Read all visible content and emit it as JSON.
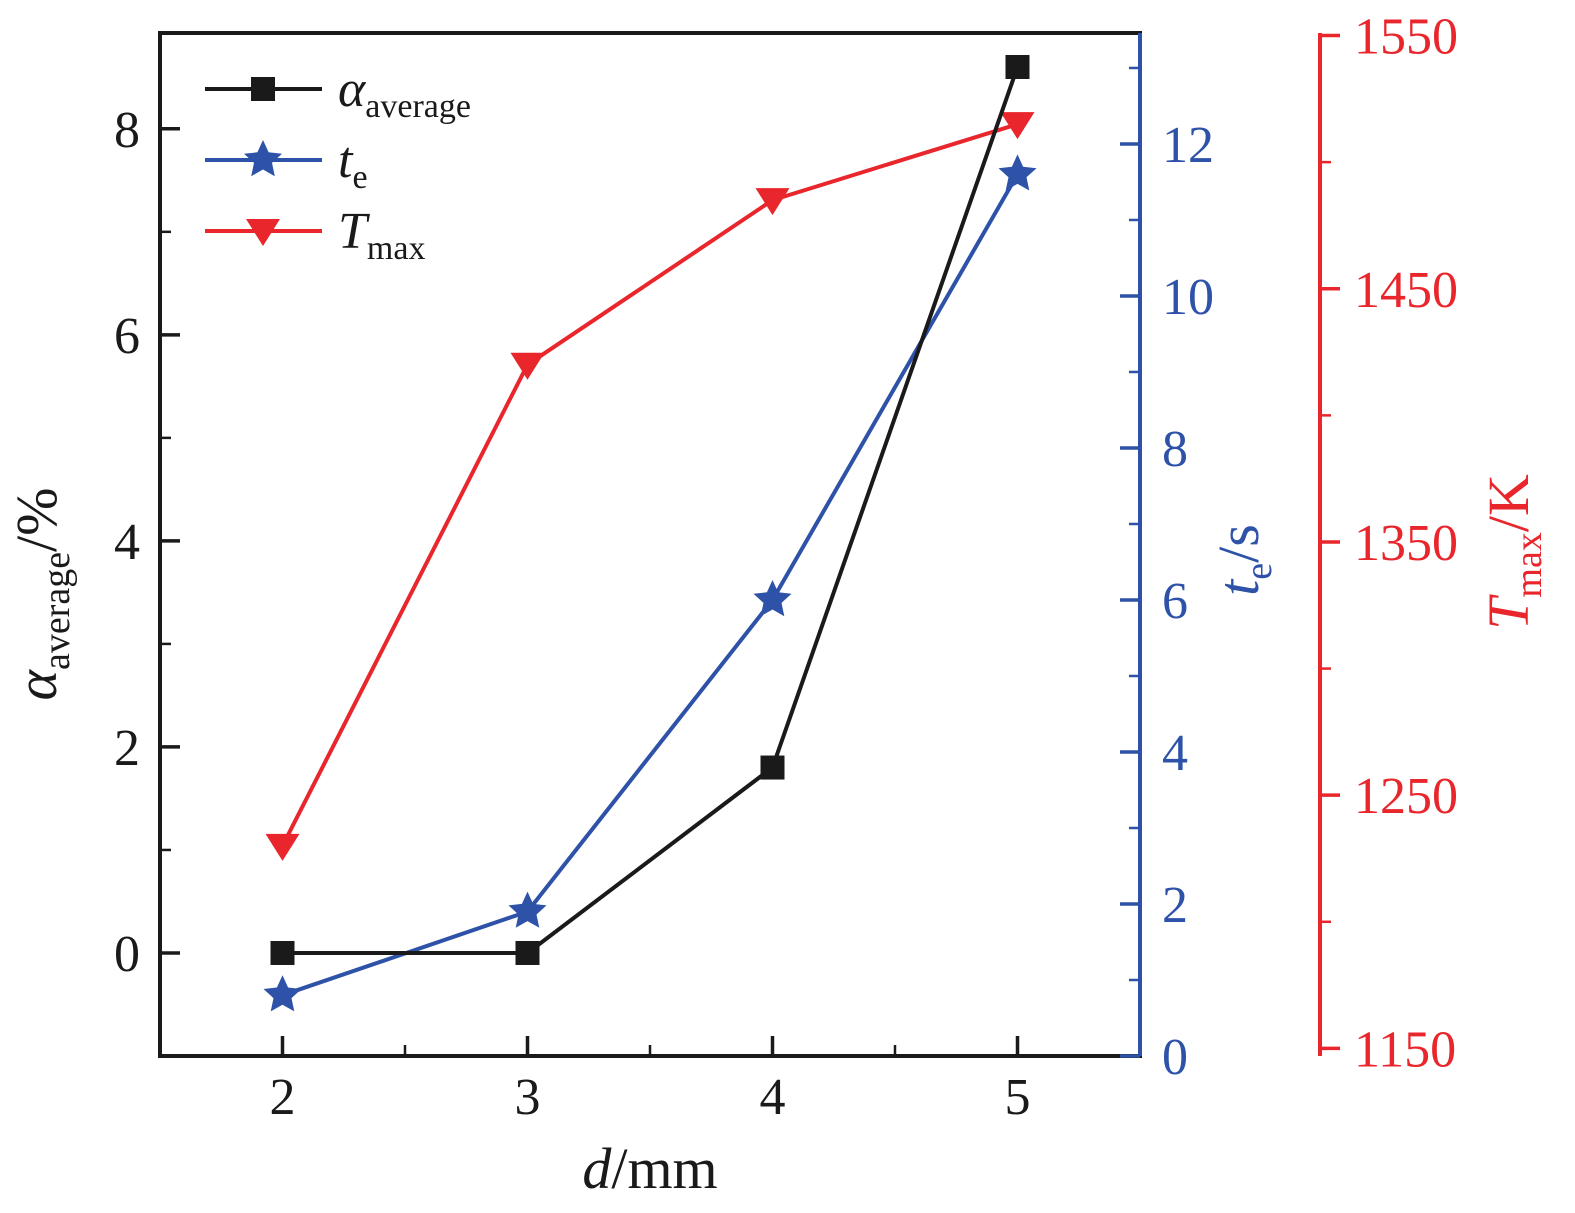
{
  "background": "#ffffff",
  "chart_data": {
    "type": "line",
    "x": [
      2,
      3,
      4,
      5
    ],
    "x_ticks": [
      2,
      3,
      4,
      5
    ],
    "x_minor_ticks": [
      2.5,
      3.5,
      4.5
    ],
    "xlim": [
      1.5,
      5.5
    ],
    "xlabel": {
      "main": "d",
      "suffix": "/mm"
    },
    "series": [
      {
        "name": "alpha-average",
        "axis": "left",
        "marker": "square",
        "color": "#1a1a1a",
        "values": [
          0,
          0,
          1.8,
          8.6
        ],
        "label": {
          "main": "α",
          "sub": "average"
        }
      },
      {
        "name": "te",
        "axis": "right_te",
        "marker": "star",
        "color": "#2d52a8",
        "values": [
          0.8,
          1.9,
          6.0,
          11.6
        ],
        "label": {
          "main": "t",
          "sub": "e"
        }
      },
      {
        "name": "tmax",
        "axis": "right_tmax",
        "marker": "triangle-down",
        "color": "#e8262c",
        "values": [
          1230,
          1420,
          1485,
          1515
        ],
        "label": {
          "main": "T",
          "sub": "max"
        }
      }
    ],
    "axes": {
      "left": {
        "color": "#1a1a1a",
        "lim": [
          -1.0,
          8.93
        ],
        "ticks": [
          0,
          2,
          4,
          6,
          8
        ],
        "minor_ticks": [
          1,
          3,
          5,
          7
        ],
        "label": {
          "main": "α",
          "sub": "average",
          "suffix": "/%"
        }
      },
      "right_te": {
        "color": "#2d52a8",
        "lim": [
          0,
          13.46
        ],
        "ticks": [
          0,
          2,
          4,
          6,
          8,
          10,
          12
        ],
        "minor_ticks": [
          1,
          3,
          5,
          7,
          9,
          11,
          13
        ],
        "label": {
          "main": "t",
          "sub": "e",
          "suffix": "/s"
        }
      },
      "right_tmax": {
        "color": "#e8262c",
        "lim": [
          1147,
          1551
        ],
        "ticks": [
          1150,
          1250,
          1350,
          1450,
          1550
        ],
        "minor_ticks": [
          1200,
          1300,
          1400,
          1500
        ],
        "label": {
          "main": "T",
          "sub": "max",
          "suffix": "/K"
        }
      }
    },
    "legend": {
      "position": "top-left",
      "entries": [
        "α_average",
        "t_e",
        "T_max"
      ]
    }
  }
}
